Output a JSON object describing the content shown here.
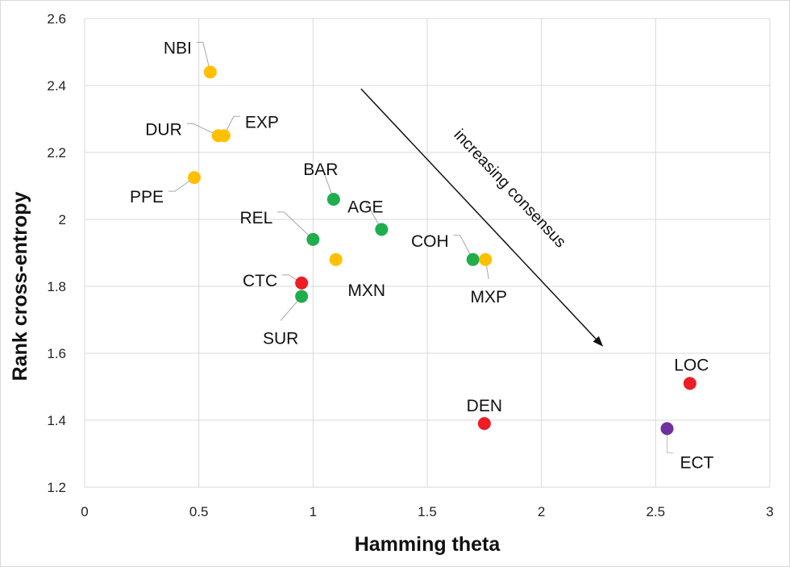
{
  "chart_data": {
    "type": "scatter",
    "title": "",
    "xlabel": "Hamming theta",
    "ylabel": "Rank cross-entropy",
    "xlim": [
      0,
      3
    ],
    "ylim": [
      1.2,
      2.6
    ],
    "xticks": [
      0,
      0.5,
      1,
      1.5,
      2,
      2.5,
      3
    ],
    "xtick_labels": [
      "0",
      "0.5",
      "1",
      "1.5",
      "2",
      "2.5",
      "3"
    ],
    "yticks": [
      1.2,
      1.4,
      1.6,
      1.8,
      2.0,
      2.2,
      2.4,
      2.6
    ],
    "ytick_labels": [
      "1.2",
      "1.4",
      "1.6",
      "1.8",
      "2",
      "2.2",
      "2.4",
      "2.6"
    ],
    "grid": true,
    "colors": {
      "yellow": "#FFC000",
      "green": "#1FAD4E",
      "red": "#EE1C25",
      "purple": "#7030A0"
    },
    "points": [
      {
        "label": "NBI",
        "x": 0.55,
        "y": 2.44,
        "color": "yellow",
        "label_pos": "top-left"
      },
      {
        "label": "DUR",
        "x": 0.585,
        "y": 2.25,
        "color": "yellow",
        "label_pos": "left"
      },
      {
        "label": "EXP",
        "x": 0.61,
        "y": 2.25,
        "color": "yellow",
        "label_pos": "top-right"
      },
      {
        "label": "PPE",
        "x": 0.48,
        "y": 2.125,
        "color": "yellow",
        "label_pos": "bottom-left"
      },
      {
        "label": "BAR",
        "x": 1.09,
        "y": 2.06,
        "color": "green",
        "label_pos": "top"
      },
      {
        "label": "AGE",
        "x": 1.3,
        "y": 1.97,
        "color": "green",
        "label_pos": "top"
      },
      {
        "label": "REL",
        "x": 1.0,
        "y": 1.94,
        "color": "green",
        "label_pos": "top-left"
      },
      {
        "label": "MXN",
        "x": 1.1,
        "y": 1.88,
        "color": "yellow",
        "label_pos": "bottom-right"
      },
      {
        "label": "CTC",
        "x": 0.95,
        "y": 1.81,
        "color": "red",
        "label_pos": "left"
      },
      {
        "label": "SUR",
        "x": 0.95,
        "y": 1.77,
        "color": "green",
        "label_pos": "bottom"
      },
      {
        "label": "COH",
        "x": 1.7,
        "y": 1.88,
        "color": "green",
        "label_pos": "top-left"
      },
      {
        "label": "MXP",
        "x": 1.755,
        "y": 1.88,
        "color": "yellow",
        "label_pos": "bottom"
      },
      {
        "label": "DEN",
        "x": 1.75,
        "y": 1.39,
        "color": "red",
        "label_pos": "top"
      },
      {
        "label": "LOC",
        "x": 2.65,
        "y": 1.51,
        "color": "red",
        "label_pos": "top"
      },
      {
        "label": "ECT",
        "x": 2.55,
        "y": 1.375,
        "color": "purple",
        "label_pos": "bottom-right"
      }
    ],
    "annotations": [
      {
        "text": "increasing consensus",
        "type": "arrow",
        "from": [
          1.21,
          2.39
        ],
        "to": [
          2.27,
          1.62
        ]
      }
    ],
    "legend": "none"
  }
}
